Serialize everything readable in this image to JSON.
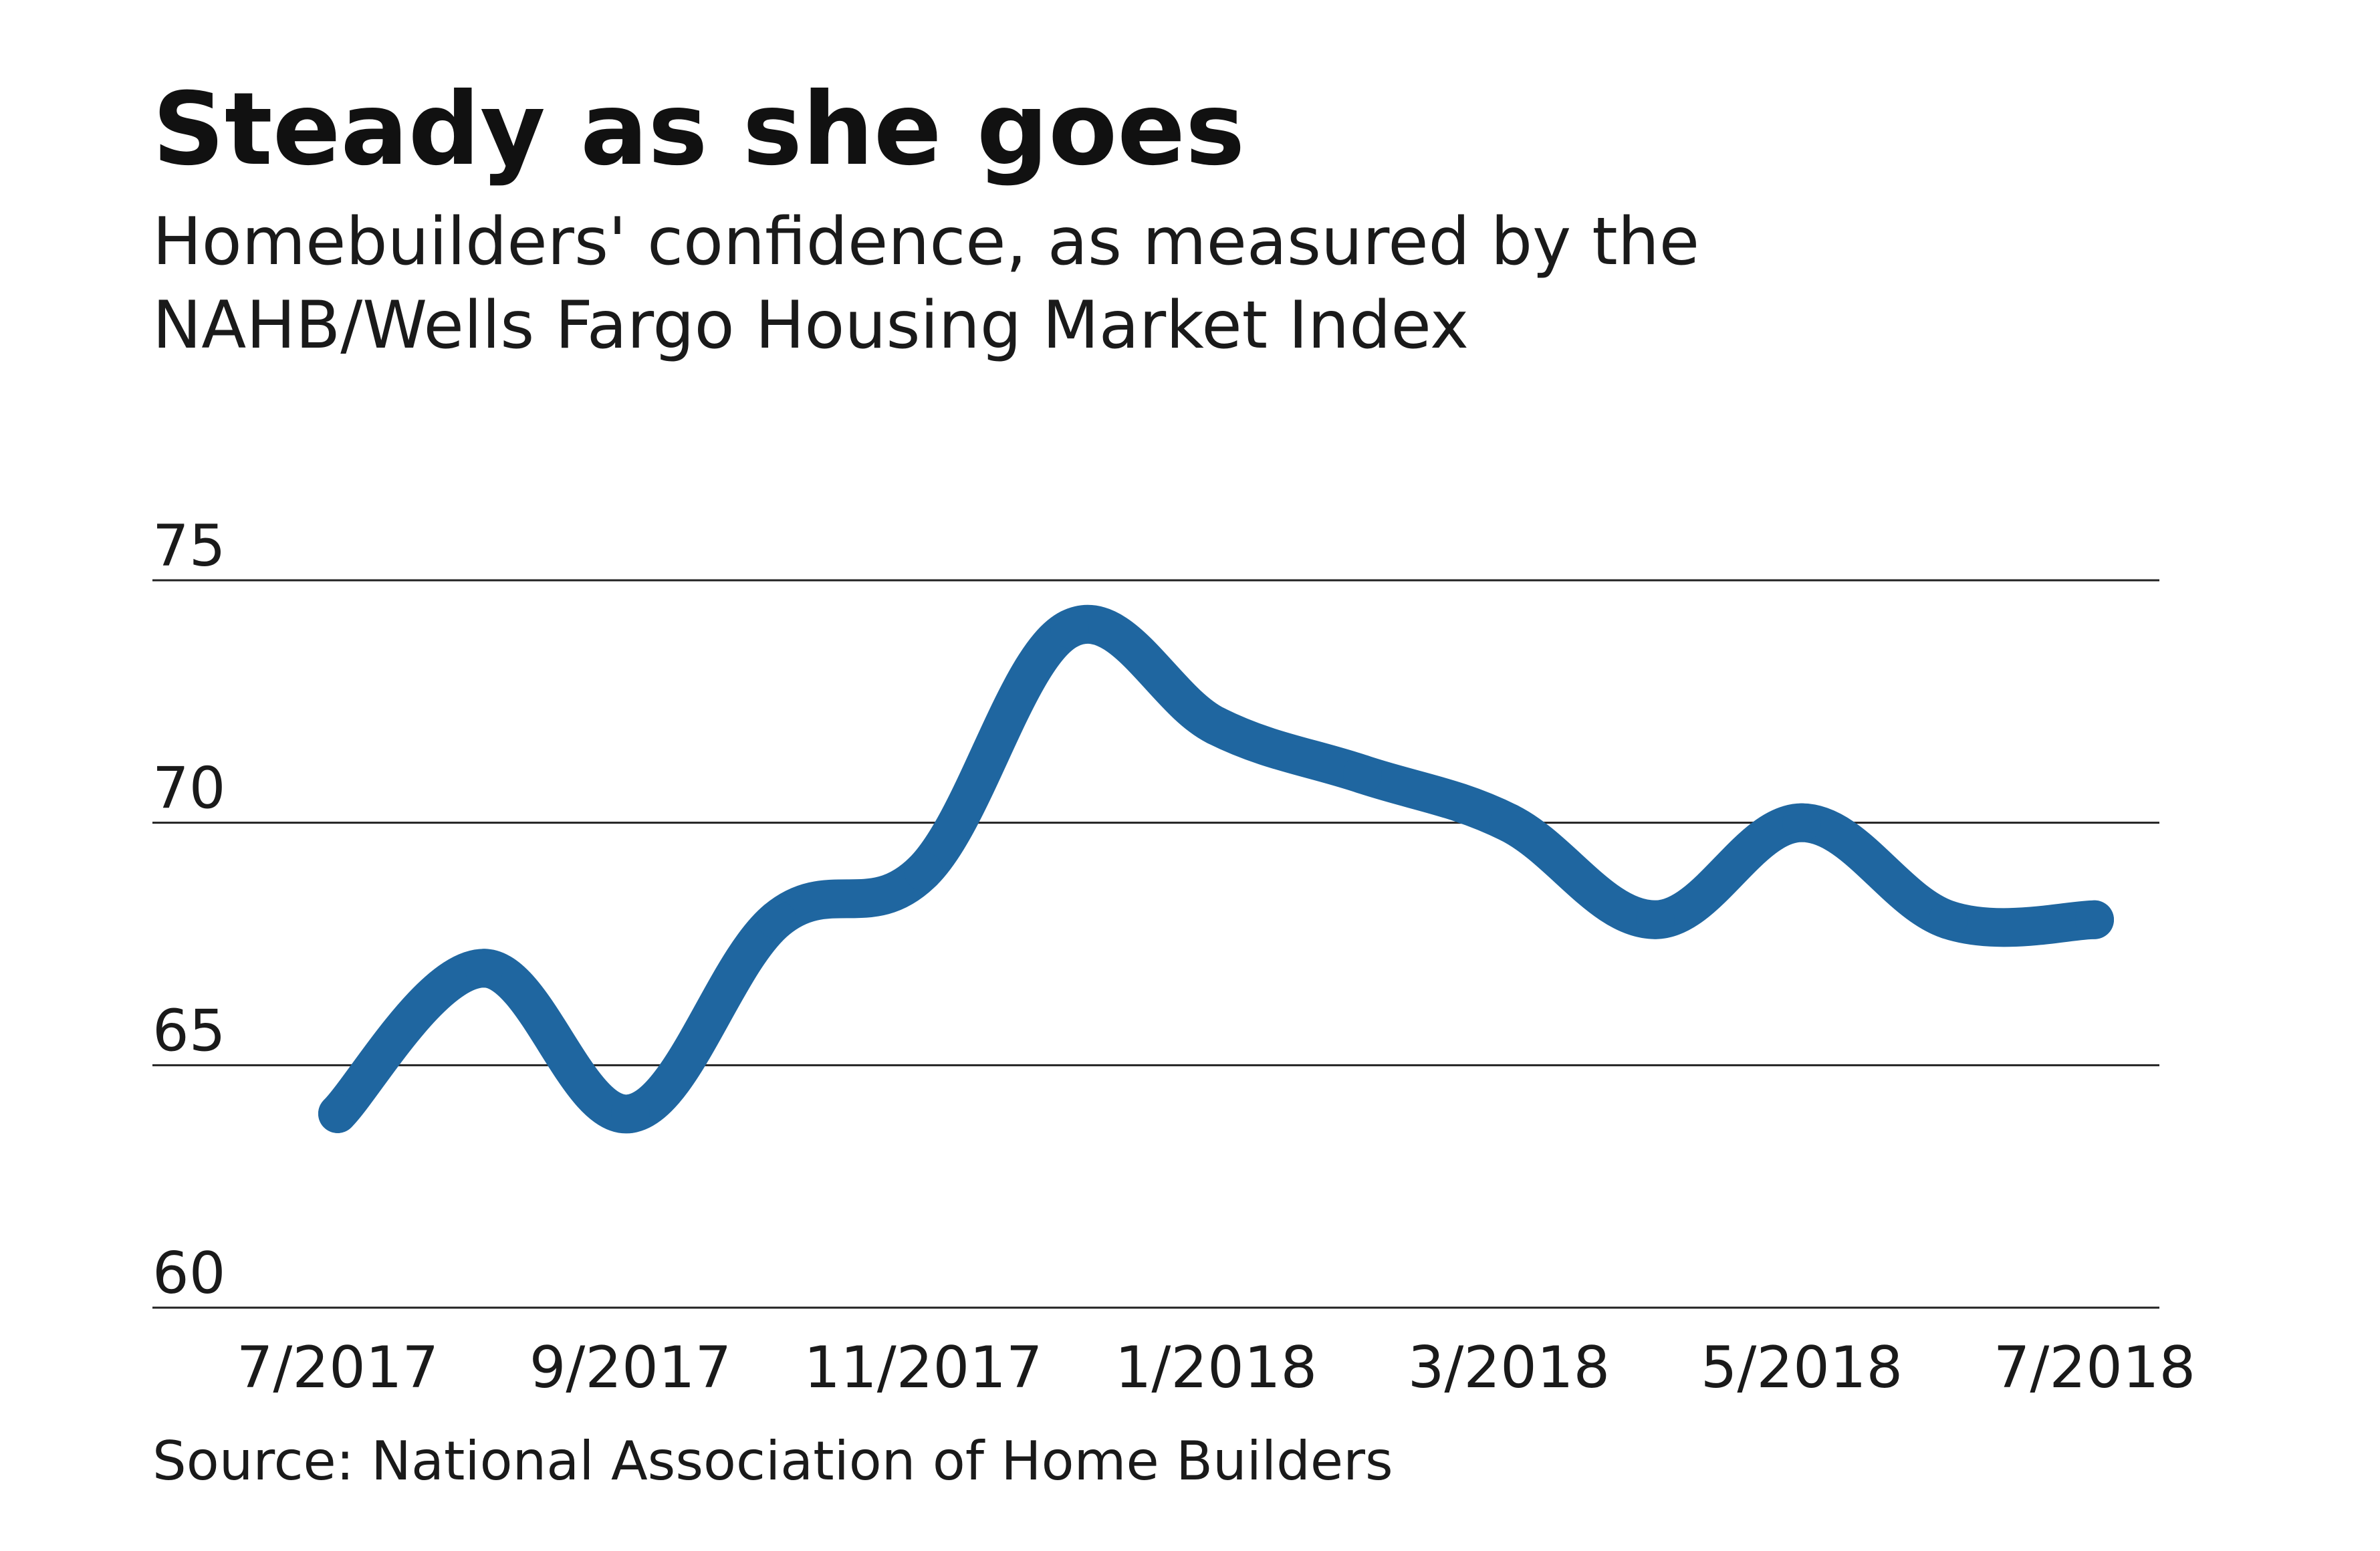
{
  "chart_data": {
    "type": "line",
    "title": "Steady as she goes",
    "subtitle_lines": [
      "Homebuilders' confidence, as measured by the",
      "NAHB/Wells Fargo Housing Market Index"
    ],
    "source": "Source: National Association of Home Builders",
    "x": [
      "7/2017",
      "8/2017",
      "9/2017",
      "10/2017",
      "11/2017",
      "12/2017",
      "1/2018",
      "2/2018",
      "3/2018",
      "4/2018",
      "5/2018",
      "6/2018",
      "7/2018"
    ],
    "x_tick_labels": [
      "7/2017",
      "9/2017",
      "11/2017",
      "1/2018",
      "3/2018",
      "5/2018",
      "7/2018"
    ],
    "series": [
      {
        "values": [
          64,
          67,
          64,
          68,
          69,
          74,
          72,
          71,
          70,
          68,
          70,
          68,
          68
        ]
      }
    ],
    "y_ticks": [
      60,
      65,
      70,
      75
    ],
    "ylim": [
      60,
      75
    ],
    "grid": true,
    "line_color": "#1f66a0",
    "gridline_color": "#222222",
    "text_color": "#111111"
  }
}
